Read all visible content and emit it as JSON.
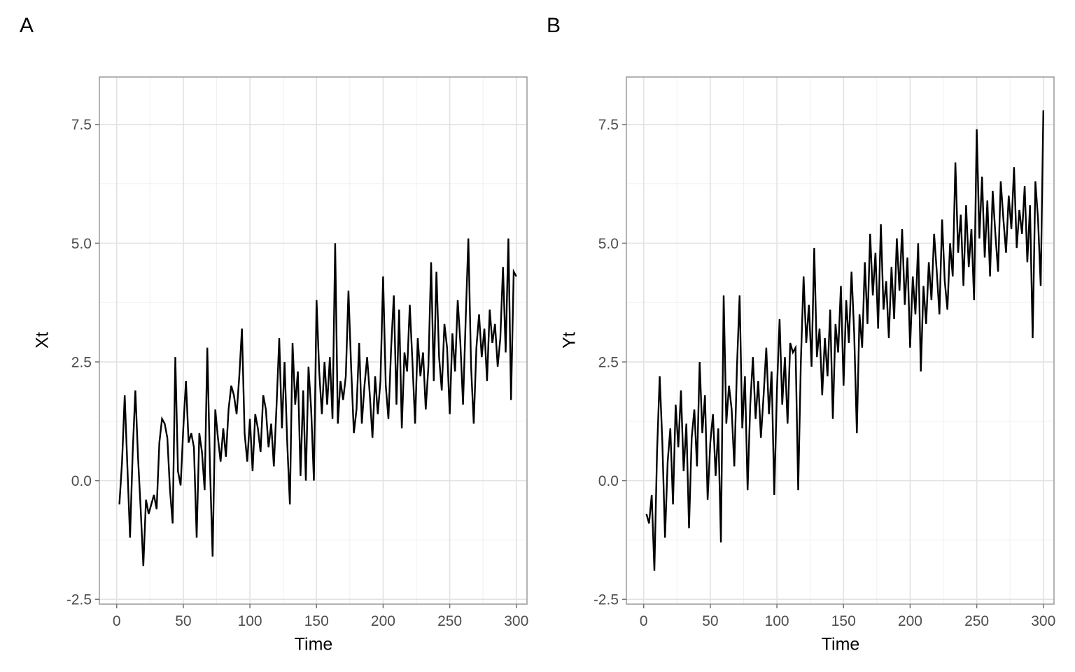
{
  "figure": {
    "background": "#ffffff",
    "style": {
      "line_color": "#000000",
      "line_width": 2.4,
      "grid_major_color": "#e2e2e2",
      "grid_minor_color": "#f0f0f0",
      "grid_major_width": 1.6,
      "grid_minor_width": 1,
      "panel_border_color": "#9a9a9a",
      "panel_border_width": 1.5,
      "tick_mark_color": "#737373",
      "tick_label_color": "#4d4d4d",
      "tick_label_size": 21,
      "axis_title_color": "#000000"
    }
  },
  "chart_data": [
    {
      "panel_label": "A",
      "type": "line",
      "title": "",
      "xlabel": "Time",
      "ylabel": "Xt",
      "xlim": [
        -13,
        308
      ],
      "ylim": [
        -2.6,
        8.5
      ],
      "grid": "on",
      "legend": "none",
      "x_tick_values": [
        0,
        50,
        100,
        150,
        200,
        250,
        300
      ],
      "x_tick_labels": [
        "0",
        "50",
        "100",
        "150",
        "200",
        "250",
        "300"
      ],
      "x_minor_ticks": [
        25,
        75,
        125,
        175,
        225,
        275
      ],
      "y_tick_values": [
        -2.5,
        0.0,
        2.5,
        5.0,
        7.5
      ],
      "y_tick_labels": [
        "-2.5",
        "0.0",
        "2.5",
        "5.0",
        "7.5"
      ],
      "y_minor_ticks": [
        -1.25,
        1.25,
        3.75,
        6.25
      ],
      "series": [
        {
          "name": "Xt",
          "x_start": 2,
          "x_step": 2,
          "values": [
            -0.5,
            0.4,
            1.8,
            0.3,
            -1.2,
            0.6,
            1.9,
            0.5,
            -0.6,
            -1.8,
            -0.4,
            -0.7,
            -0.5,
            -0.3,
            -0.6,
            0.8,
            1.3,
            1.2,
            0.9,
            -0.2,
            -0.9,
            2.6,
            0.2,
            -0.1,
            1.1,
            2.1,
            0.8,
            1.0,
            0.7,
            -1.2,
            1.0,
            0.6,
            -0.2,
            2.8,
            0.3,
            -1.6,
            1.5,
            0.9,
            0.4,
            1.1,
            0.5,
            1.5,
            2.0,
            1.8,
            1.4,
            2.2,
            3.2,
            1.0,
            0.4,
            1.3,
            0.2,
            1.4,
            1.1,
            0.6,
            1.8,
            1.5,
            0.7,
            1.2,
            0.3,
            1.6,
            3.0,
            1.1,
            2.5,
            0.8,
            -0.5,
            2.9,
            1.6,
            2.3,
            0.1,
            1.9,
            0.0,
            2.4,
            1.5,
            0.0,
            3.8,
            2.3,
            1.4,
            2.5,
            1.6,
            2.6,
            1.3,
            5.0,
            1.2,
            2.1,
            1.7,
            2.2,
            4.0,
            2.4,
            1.0,
            1.5,
            2.9,
            1.2,
            2.0,
            2.6,
            1.8,
            0.9,
            2.2,
            1.4,
            2.1,
            4.3,
            2.0,
            1.3,
            2.8,
            3.9,
            1.6,
            3.6,
            1.1,
            2.7,
            2.3,
            3.7,
            2.5,
            1.2,
            3.0,
            2.2,
            2.7,
            1.5,
            2.4,
            4.6,
            2.1,
            4.4,
            2.6,
            1.9,
            3.3,
            2.8,
            1.4,
            3.1,
            2.3,
            3.8,
            2.9,
            1.6,
            3.4,
            5.1,
            2.4,
            1.2,
            2.8,
            3.5,
            2.6,
            3.2,
            2.1,
            3.6,
            2.9,
            3.3,
            2.4,
            3.0,
            4.5,
            2.7,
            5.1,
            1.7,
            4.4,
            4.3
          ]
        }
      ]
    },
    {
      "panel_label": "B",
      "type": "line",
      "title": "",
      "xlabel": "Time",
      "ylabel": "Yt",
      "xlim": [
        -13,
        308
      ],
      "ylim": [
        -2.6,
        8.5
      ],
      "grid": "on",
      "legend": "none",
      "x_tick_values": [
        0,
        50,
        100,
        150,
        200,
        250,
        300
      ],
      "x_tick_labels": [
        "0",
        "50",
        "100",
        "150",
        "200",
        "250",
        "300"
      ],
      "x_minor_ticks": [
        25,
        75,
        125,
        175,
        225,
        275
      ],
      "y_tick_values": [
        -2.5,
        0.0,
        2.5,
        5.0,
        7.5
      ],
      "y_tick_labels": [
        "-2.5",
        "0.0",
        "2.5",
        "5.0",
        "7.5"
      ],
      "y_minor_ticks": [
        -1.25,
        1.25,
        3.75,
        6.25
      ],
      "series": [
        {
          "name": "Yt",
          "x_start": 2,
          "x_step": 2,
          "values": [
            -0.7,
            -0.9,
            -0.3,
            -1.9,
            0.6,
            2.2,
            0.8,
            -1.2,
            0.4,
            1.1,
            -0.5,
            1.6,
            0.7,
            1.9,
            0.2,
            1.2,
            -1.0,
            0.9,
            1.5,
            0.3,
            2.5,
            1.0,
            1.8,
            -0.4,
            0.8,
            1.4,
            0.1,
            1.1,
            -1.3,
            3.9,
            1.2,
            2.0,
            1.5,
            0.3,
            2.4,
            3.9,
            1.1,
            2.2,
            -0.2,
            1.6,
            2.6,
            1.3,
            2.1,
            0.9,
            1.8,
            2.8,
            1.4,
            2.3,
            -0.3,
            1.9,
            3.4,
            1.6,
            2.6,
            1.2,
            2.9,
            2.7,
            2.8,
            -0.2,
            2.5,
            4.3,
            2.9,
            3.7,
            2.4,
            4.9,
            2.6,
            3.2,
            1.8,
            3.0,
            2.2,
            3.6,
            1.3,
            3.3,
            2.7,
            4.1,
            2.0,
            3.8,
            2.9,
            4.4,
            3.1,
            1.0,
            3.5,
            2.8,
            4.6,
            3.3,
            5.2,
            3.9,
            4.8,
            3.2,
            5.4,
            3.6,
            4.2,
            3.0,
            4.5,
            3.4,
            5.1,
            4.0,
            5.3,
            3.7,
            4.7,
            2.8,
            4.3,
            3.5,
            5.0,
            2.3,
            4.1,
            3.3,
            4.6,
            3.8,
            5.2,
            4.4,
            3.5,
            5.5,
            4.2,
            3.6,
            5.0,
            4.3,
            6.7,
            4.8,
            5.6,
            4.1,
            5.8,
            4.5,
            5.3,
            3.8,
            7.4,
            5.1,
            6.4,
            4.7,
            5.9,
            4.3,
            6.1,
            5.2,
            4.4,
            6.3,
            5.5,
            4.8,
            6.0,
            5.3,
            6.6,
            4.9,
            5.7,
            5.2,
            6.2,
            4.6,
            5.8,
            3.0,
            6.3,
            5.5,
            4.1,
            7.8
          ]
        }
      ]
    }
  ]
}
